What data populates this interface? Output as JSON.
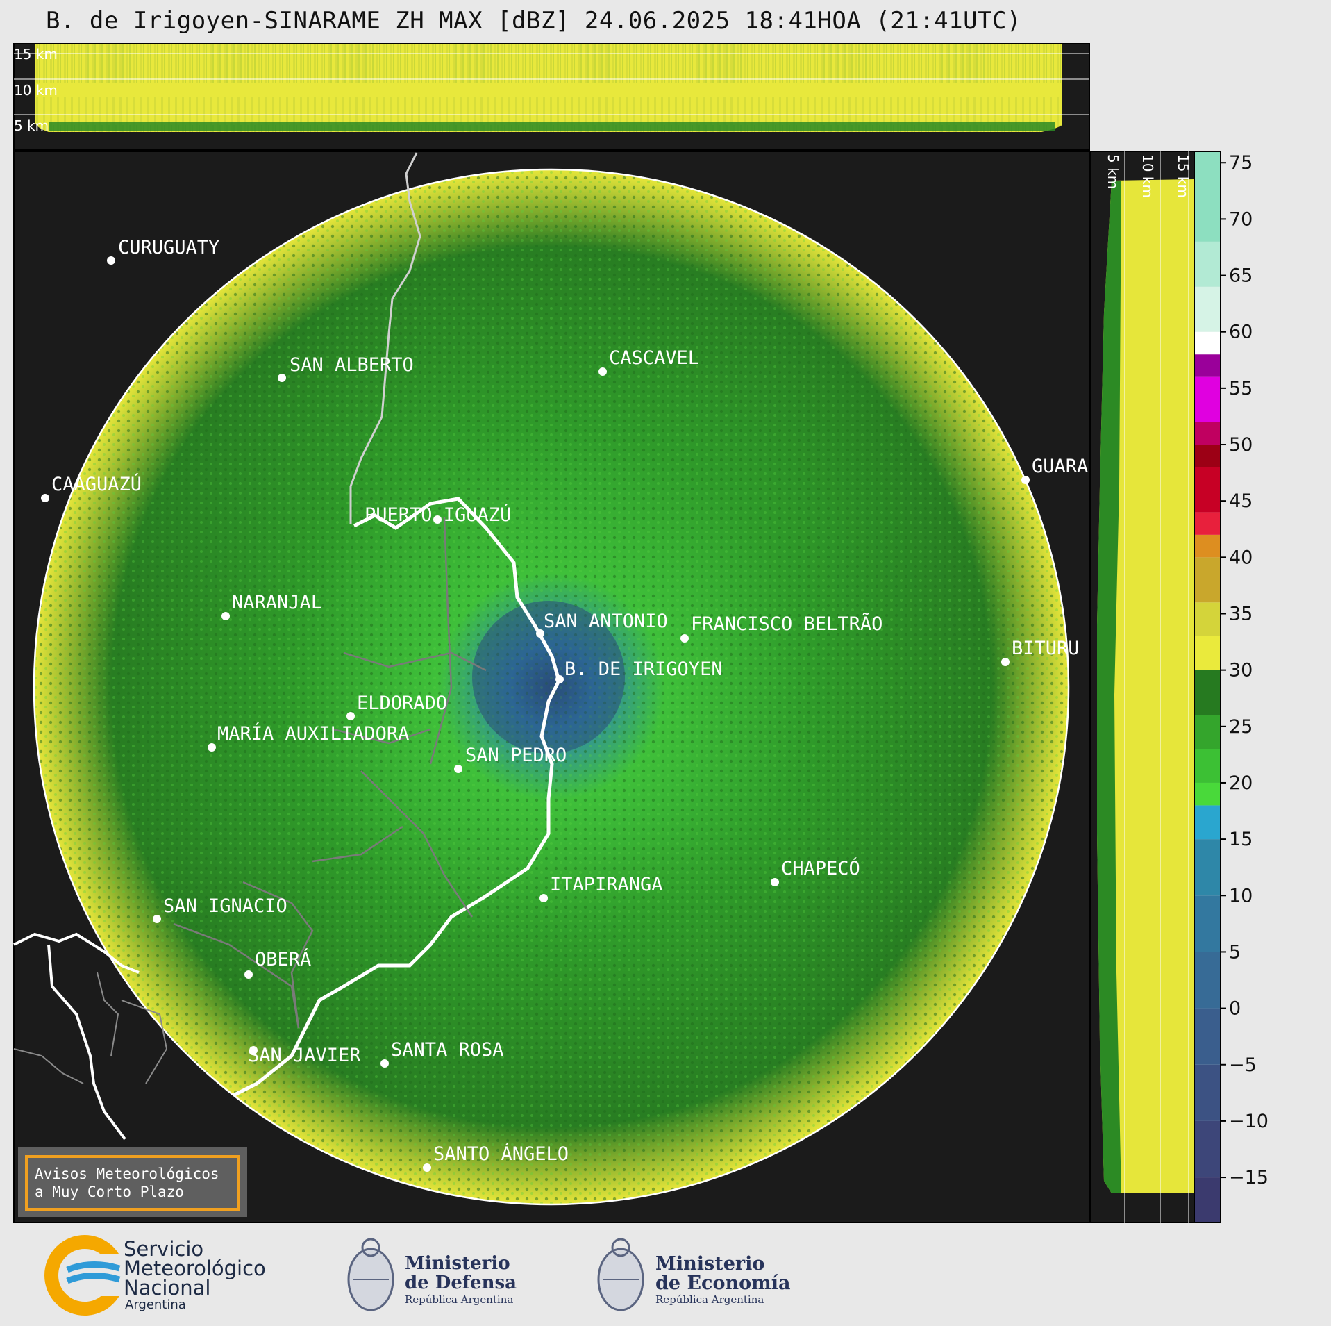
{
  "title": "B. de Irigoyen-SINARAME ZH MAX [dBZ] 24.06.2025 18:41HOA (21:41UTC)",
  "top_panel": {
    "height_labels": [
      "15 km",
      "10 km",
      "5 km"
    ]
  },
  "side_panel": {
    "height_labels": [
      "5 km",
      "10 km",
      "15 km"
    ]
  },
  "cities": [
    {
      "name": "CURUGUATY"
    },
    {
      "name": "SAN ALBERTO"
    },
    {
      "name": "CASCAVEL"
    },
    {
      "name": "CAAGUAZÚ"
    },
    {
      "name": "GUARA"
    },
    {
      "name": "PUERTO IGUAZÚ"
    },
    {
      "name": "NARANJAL"
    },
    {
      "name": "SAN ANTONIO"
    },
    {
      "name": "FRANCISCO BELTRÃO"
    },
    {
      "name": "BITURU"
    },
    {
      "name": "B. DE IRIGOYEN"
    },
    {
      "name": "ELDORADO"
    },
    {
      "name": "MARÍA AUXILIADORA"
    },
    {
      "name": "SAN PEDRO"
    },
    {
      "name": "ITAPIRANGA"
    },
    {
      "name": "CHAPECÓ"
    },
    {
      "name": "SAN IGNACIO"
    },
    {
      "name": "OBERÁ"
    },
    {
      "name": "SAN JAVIER"
    },
    {
      "name": "SANTA ROSA"
    },
    {
      "name": "SANTO ÁNGELO"
    }
  ],
  "colorbar": {
    "unit": "dBZ",
    "min": -19,
    "max": 76,
    "ticks": [
      "75",
      "70",
      "65",
      "60",
      "55",
      "50",
      "45",
      "40",
      "35",
      "30",
      "25",
      "20",
      "15",
      "10",
      "5",
      "0",
      "−5",
      "−10",
      "−15"
    ],
    "bands": [
      {
        "from": -19,
        "to": -15,
        "color": "#3b3a6e"
      },
      {
        "from": -15,
        "to": -10,
        "color": "#3d4679"
      },
      {
        "from": -10,
        "to": -5,
        "color": "#3c5283"
      },
      {
        "from": -5,
        "to": 0,
        "color": "#3a5e8d"
      },
      {
        "from": 0,
        "to": 5,
        "color": "#376b96"
      },
      {
        "from": 5,
        "to": 10,
        "color": "#33789f"
      },
      {
        "from": 10,
        "to": 15,
        "color": "#2e87a8"
      },
      {
        "from": 15,
        "to": 18,
        "color": "#2aa6cf"
      },
      {
        "from": 18,
        "to": 20,
        "color": "#49d93a"
      },
      {
        "from": 20,
        "to": 23,
        "color": "#3cc034"
      },
      {
        "from": 23,
        "to": 26,
        "color": "#34a52c"
      },
      {
        "from": 26,
        "to": 30,
        "color": "#267a20"
      },
      {
        "from": 30,
        "to": 33,
        "color": "#eaea3c"
      },
      {
        "from": 33,
        "to": 36,
        "color": "#d4d43a"
      },
      {
        "from": 36,
        "to": 40,
        "color": "#c9a72c"
      },
      {
        "from": 40,
        "to": 42,
        "color": "#dd8e20"
      },
      {
        "from": 42,
        "to": 44,
        "color": "#e8203c"
      },
      {
        "from": 44,
        "to": 48,
        "color": "#c70025"
      },
      {
        "from": 48,
        "to": 50,
        "color": "#9c0015"
      },
      {
        "from": 50,
        "to": 52,
        "color": "#c00060"
      },
      {
        "from": 52,
        "to": 56,
        "color": "#e000e0"
      },
      {
        "from": 56,
        "to": 58,
        "color": "#9a009a"
      },
      {
        "from": 58,
        "to": 60,
        "color": "#ffffff"
      },
      {
        "from": 60,
        "to": 64,
        "color": "#d6f3e6"
      },
      {
        "from": 64,
        "to": 68,
        "color": "#b2ead4"
      },
      {
        "from": 68,
        "to": 76,
        "color": "#8ddfc0"
      }
    ]
  },
  "warning_box": {
    "line1": "Avisos Meteorológicos",
    "line2": "a Muy Corto Plazo",
    "border_color": "#f0a020"
  },
  "footer": {
    "smn": {
      "line1": "Servicio",
      "line2": "Meteorológico",
      "line3": "Nacional",
      "line4": "Argentina"
    },
    "defensa": {
      "line1": "Ministerio",
      "line2": "de Defensa",
      "line3": "República Argentina"
    },
    "economia": {
      "line1": "Ministerio",
      "line2": "de Economía",
      "line3": "República Argentina"
    }
  }
}
